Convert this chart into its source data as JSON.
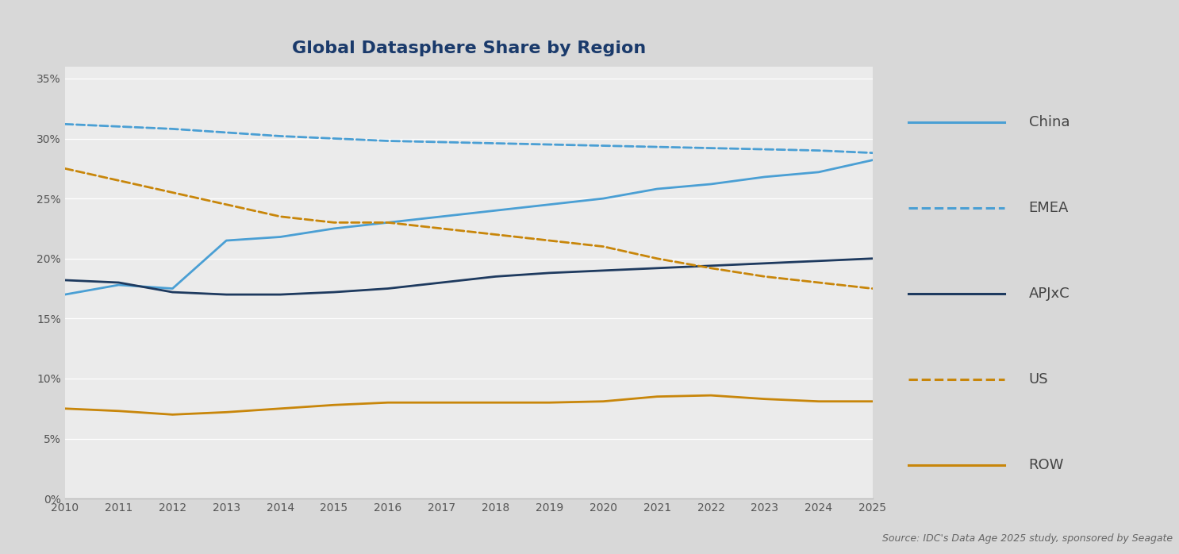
{
  "title": "Global Datasphere Share by Region",
  "source_text": "Source: IDC's Data Age 2025 study, sponsored by Seagate",
  "years": [
    2010,
    2011,
    2012,
    2013,
    2014,
    2015,
    2016,
    2017,
    2018,
    2019,
    2020,
    2021,
    2022,
    2023,
    2024,
    2025
  ],
  "series": [
    {
      "name": "China",
      "values": [
        17.0,
        17.8,
        17.5,
        21.5,
        21.8,
        22.5,
        23.0,
        23.5,
        24.0,
        24.5,
        25.0,
        25.8,
        26.2,
        26.8,
        27.2,
        28.2
      ],
      "color": "#4a9fd4",
      "linestyle": "solid",
      "linewidth": 2.0
    },
    {
      "name": "EMEA",
      "values": [
        31.2,
        31.0,
        30.8,
        30.5,
        30.2,
        30.0,
        29.8,
        29.7,
        29.6,
        29.5,
        29.4,
        29.3,
        29.2,
        29.1,
        29.0,
        28.8
      ],
      "color": "#4a9fd4",
      "linestyle": "dashed",
      "linewidth": 2.0
    },
    {
      "name": "APJxC",
      "values": [
        18.2,
        18.0,
        17.2,
        17.0,
        17.0,
        17.2,
        17.5,
        18.0,
        18.5,
        18.8,
        19.0,
        19.2,
        19.4,
        19.6,
        19.8,
        20.0
      ],
      "color": "#1e3a5f",
      "linestyle": "solid",
      "linewidth": 2.0
    },
    {
      "name": "US",
      "values": [
        27.5,
        26.5,
        25.5,
        24.5,
        23.5,
        23.0,
        23.0,
        22.5,
        22.0,
        21.5,
        21.0,
        20.0,
        19.2,
        18.5,
        18.0,
        17.5
      ],
      "color": "#c8860a",
      "linestyle": "dashed",
      "linewidth": 2.0
    },
    {
      "name": "ROW",
      "values": [
        7.5,
        7.3,
        7.0,
        7.2,
        7.5,
        7.8,
        8.0,
        8.0,
        8.0,
        8.0,
        8.1,
        8.5,
        8.6,
        8.3,
        8.1,
        8.1
      ],
      "color": "#c8860a",
      "linestyle": "solid",
      "linewidth": 2.0
    }
  ],
  "ylim": [
    0,
    36
  ],
  "yticks": [
    0,
    5,
    10,
    15,
    20,
    25,
    30,
    35
  ],
  "ytick_labels": [
    "0%",
    "5%",
    "10%",
    "15%",
    "20%",
    "25%",
    "30%",
    "35%"
  ],
  "chart_bg_color": "#ebebeb",
  "legend_bg_color": "#d8d8d8",
  "fig_bg_color": "#d8d8d8",
  "title_color": "#1a3a6b",
  "title_fontsize": 16,
  "tick_fontsize": 10,
  "tick_color": "#555555",
  "grid_color": "#ffffff",
  "source_fontsize": 9,
  "source_color": "#666666",
  "legend_entries": [
    {
      "name": "China",
      "color": "#4a9fd4",
      "linestyle": "solid"
    },
    {
      "name": "EMEA",
      "color": "#4a9fd4",
      "linestyle": "dashed"
    },
    {
      "name": "APJxC",
      "color": "#1e3a5f",
      "linestyle": "solid"
    },
    {
      "name": "US",
      "color": "#c8860a",
      "linestyle": "dashed"
    },
    {
      "name": "ROW",
      "color": "#c8860a",
      "linestyle": "solid"
    }
  ]
}
